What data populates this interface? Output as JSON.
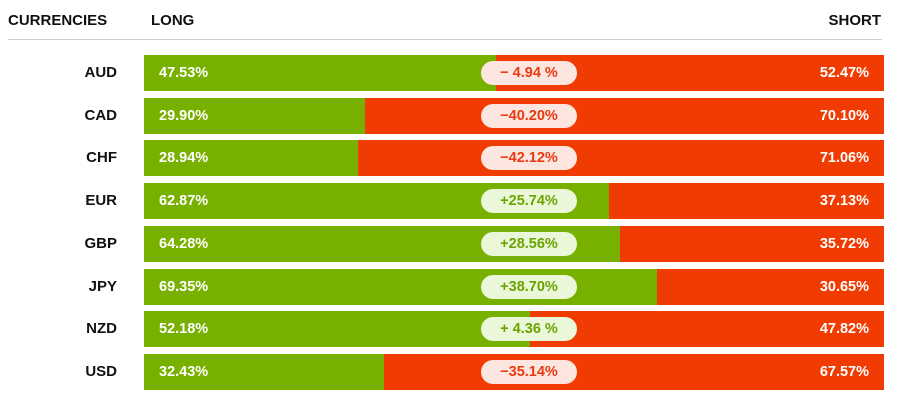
{
  "header": {
    "currencies": "CURRENCIES",
    "long": "LONG",
    "short": "SHORT"
  },
  "colors": {
    "long": "#78b000",
    "short": "#f03c02"
  },
  "chart_data": {
    "type": "bar",
    "categories": [
      "AUD",
      "CAD",
      "CHF",
      "EUR",
      "GBP",
      "JPY",
      "NZD",
      "USD"
    ],
    "series": [
      {
        "name": "LONG",
        "values": [
          47.53,
          29.9,
          28.94,
          62.87,
          64.28,
          69.35,
          52.18,
          32.43
        ]
      },
      {
        "name": "SHORT",
        "values": [
          52.47,
          70.1,
          71.06,
          37.13,
          35.72,
          30.65,
          47.82,
          67.57
        ]
      }
    ],
    "net_labels": [
      "− 4.94 %",
      "−40.20%",
      "−42.12%",
      "+25.74%",
      "+28.56%",
      "+38.70%",
      "+ 4.36 %",
      "−35.14%"
    ],
    "long_labels": [
      "47.53%",
      "29.90%",
      "28.94%",
      "62.87%",
      "64.28%",
      "69.35%",
      "52.18%",
      "32.43%"
    ],
    "short_labels": [
      "52.47%",
      "70.10%",
      "71.06%",
      "37.13%",
      "35.72%",
      "30.65%",
      "47.82%",
      "67.57%"
    ],
    "xlim": [
      0,
      100
    ],
    "stacked": true,
    "orientation": "horizontal"
  }
}
